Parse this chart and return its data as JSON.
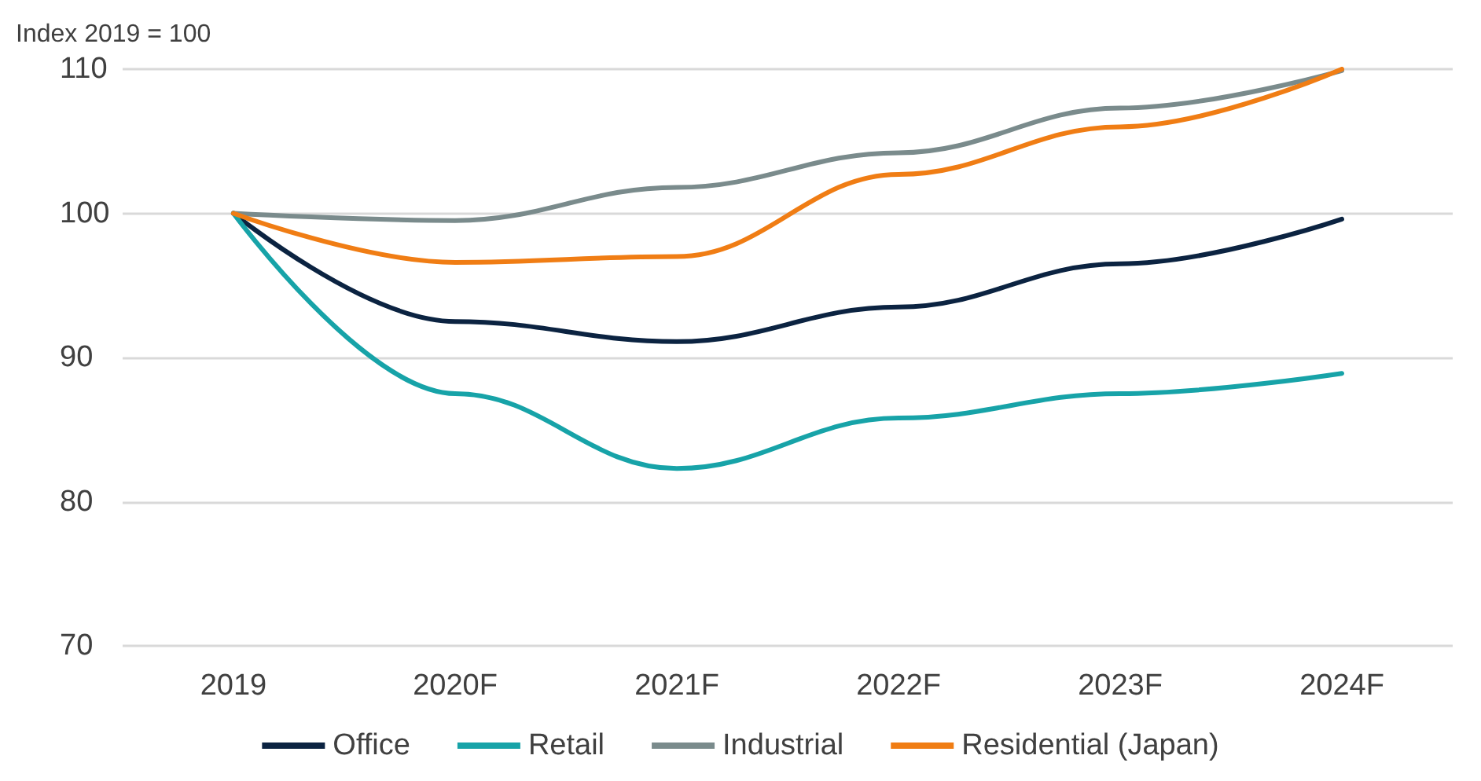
{
  "chart_data": {
    "type": "line",
    "ylabel": "Index 2019 = 100",
    "categories": [
      "2019",
      "2020F",
      "2021F",
      "2022F",
      "2023F",
      "2024F"
    ],
    "series": [
      {
        "name": "Office",
        "color": "#0b2341",
        "values": [
          100,
          92.5,
          91.1,
          93.5,
          96.5,
          99.6
        ]
      },
      {
        "name": "Retail",
        "color": "#17a3a8",
        "values": [
          100,
          87.5,
          82.3,
          85.8,
          87.5,
          88.9
        ]
      },
      {
        "name": "Industrial",
        "color": "#7a8b8c",
        "values": [
          100,
          99.5,
          101.8,
          104.2,
          107.3,
          109.9
        ]
      },
      {
        "name": "Residential (Japan)",
        "color": "#f07d14",
        "values": [
          100,
          96.6,
          97.0,
          102.7,
          106.0,
          110
        ]
      }
    ],
    "ylim": [
      70,
      110
    ],
    "yticks": [
      70,
      80,
      90,
      100,
      110
    ],
    "grid": "y",
    "legend": "bottom",
    "marker": "none",
    "line_style": "solid"
  }
}
